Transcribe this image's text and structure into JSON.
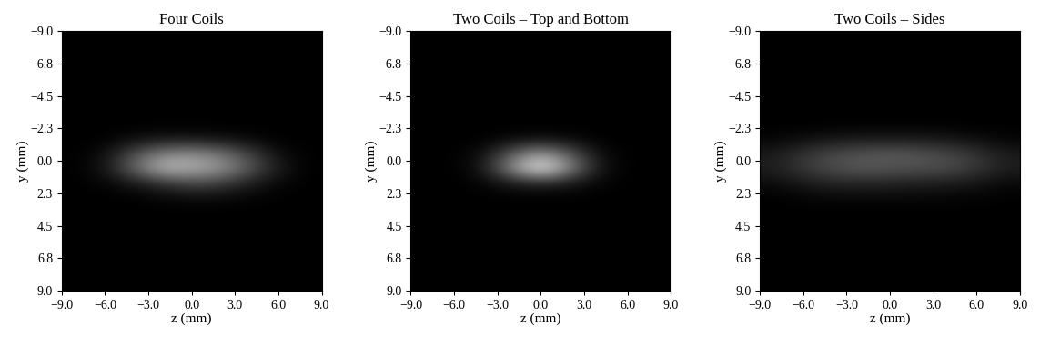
{
  "chart_data": [
    {
      "type": "heatmap",
      "title": "Four Coils",
      "x_label": "z (mm)",
      "y_label": "y (mm)",
      "xlim": [
        -9.0,
        9.0
      ],
      "ylim": [
        9.0,
        -9.0
      ],
      "xticks": [
        {
          "value": -9.0,
          "label": "−9.0"
        },
        {
          "value": -6.0,
          "label": "−6.0"
        },
        {
          "value": -3.0,
          "label": "−3.0"
        },
        {
          "value": 0.0,
          "label": "0.0"
        },
        {
          "value": 3.0,
          "label": "3.0"
        },
        {
          "value": 6.0,
          "label": "6.0"
        },
        {
          "value": 9.0,
          "label": "9.0"
        }
      ],
      "yticks": [
        {
          "value": -9.0,
          "label": "−9.0"
        },
        {
          "value": -6.75,
          "label": "−6.8"
        },
        {
          "value": -4.5,
          "label": "−4.5"
        },
        {
          "value": -2.25,
          "label": "−2.3"
        },
        {
          "value": 0.0,
          "label": "0.0"
        },
        {
          "value": 2.25,
          "label": "2.3"
        },
        {
          "value": 4.5,
          "label": "4.5"
        },
        {
          "value": 6.75,
          "label": "6.8"
        },
        {
          "value": 9.0,
          "label": "9.0"
        }
      ],
      "z_edges": [
        -9,
        -7,
        -5,
        -3,
        -1,
        1,
        3,
        5,
        7,
        9
      ],
      "y_edges": [
        -9,
        -8,
        -7,
        -6,
        -5,
        -4,
        -3,
        -2,
        -1,
        0,
        1,
        2,
        3,
        4,
        5,
        6,
        7,
        8,
        9
      ],
      "color": "gray",
      "color_range": [
        0,
        1
      ],
      "cells": [
        [
          0,
          0,
          0,
          0,
          0,
          0,
          0,
          0,
          0
        ],
        [
          0,
          0,
          0,
          0,
          0,
          0,
          0,
          0,
          0
        ],
        [
          0,
          0,
          0,
          0,
          0,
          0,
          0,
          0,
          0
        ],
        [
          0,
          0,
          0,
          0,
          0,
          0,
          0,
          0,
          0
        ],
        [
          0,
          0,
          0,
          0,
          0,
          0,
          0,
          0,
          0
        ],
        [
          0,
          0,
          0,
          0,
          0,
          0,
          0,
          0,
          0
        ],
        [
          0,
          0,
          0,
          0,
          0,
          0,
          0,
          0,
          0
        ],
        [
          0,
          0,
          0.05,
          0.08,
          0.08,
          0.06,
          0.03,
          0,
          0
        ],
        [
          0,
          0.05,
          0.3,
          0.5,
          0.55,
          0.45,
          0.25,
          0.05,
          0
        ],
        [
          0,
          0.08,
          0.4,
          0.75,
          0.7,
          0.6,
          0.35,
          0.1,
          0
        ],
        [
          0,
          0.02,
          0.1,
          0.2,
          0.3,
          0.25,
          0.12,
          0.03,
          0
        ],
        [
          0,
          0,
          0,
          0.03,
          0.05,
          0.04,
          0.02,
          0,
          0
        ],
        [
          0,
          0,
          0,
          0,
          0,
          0,
          0,
          0,
          0
        ],
        [
          0,
          0,
          0,
          0,
          0,
          0,
          0,
          0,
          0
        ],
        [
          0,
          0,
          0,
          0,
          0,
          0,
          0,
          0,
          0
        ],
        [
          0,
          0,
          0,
          0,
          0,
          0,
          0,
          0,
          0
        ],
        [
          0,
          0,
          0,
          0,
          0,
          0,
          0,
          0,
          0
        ],
        [
          0,
          0,
          0,
          0,
          0,
          0,
          0,
          0,
          0
        ]
      ]
    },
    {
      "type": "heatmap",
      "title": "Two Coils – Top and Bottom",
      "x_label": "z (mm)",
      "y_label": "y (mm)",
      "xlim": [
        -9.0,
        9.0
      ],
      "ylim": [
        9.0,
        -9.0
      ],
      "xticks": [
        {
          "value": -9.0,
          "label": "−9.0"
        },
        {
          "value": -6.0,
          "label": "−6.0"
        },
        {
          "value": -3.0,
          "label": "−3.0"
        },
        {
          "value": 0.0,
          "label": "0.0"
        },
        {
          "value": 3.0,
          "label": "3.0"
        },
        {
          "value": 6.0,
          "label": "6.0"
        },
        {
          "value": 9.0,
          "label": "9.0"
        }
      ],
      "yticks": [
        {
          "value": -9.0,
          "label": "−9.0"
        },
        {
          "value": -6.75,
          "label": "−6.8"
        },
        {
          "value": -4.5,
          "label": "−4.5"
        },
        {
          "value": -2.25,
          "label": "−2.3"
        },
        {
          "value": 0.0,
          "label": "0.0"
        },
        {
          "value": 2.25,
          "label": "2.3"
        },
        {
          "value": 4.5,
          "label": "4.5"
        },
        {
          "value": 6.75,
          "label": "6.8"
        },
        {
          "value": 9.0,
          "label": "9.0"
        }
      ],
      "z_edges": [
        -9,
        -7,
        -5,
        -3,
        -1,
        1,
        3,
        5,
        7,
        9
      ],
      "y_edges": [
        -9,
        -8,
        -7,
        -6,
        -5,
        -4,
        -3,
        -2,
        -1,
        0,
        1,
        2,
        3,
        4,
        5,
        6,
        7,
        8,
        9
      ],
      "color": "gray",
      "color_range": [
        0,
        1
      ],
      "cells": [
        [
          0,
          0,
          0,
          0,
          0,
          0,
          0,
          0,
          0
        ],
        [
          0,
          0,
          0,
          0,
          0,
          0,
          0,
          0,
          0
        ],
        [
          0,
          0,
          0,
          0,
          0,
          0,
          0,
          0,
          0
        ],
        [
          0,
          0,
          0,
          0,
          0,
          0,
          0,
          0,
          0
        ],
        [
          0,
          0,
          0,
          0,
          0,
          0,
          0,
          0,
          0
        ],
        [
          0,
          0,
          0,
          0,
          0,
          0,
          0,
          0,
          0
        ],
        [
          0,
          0,
          0,
          0,
          0,
          0,
          0,
          0,
          0
        ],
        [
          0,
          0,
          0,
          0.03,
          0.05,
          0.03,
          0,
          0,
          0
        ],
        [
          0,
          0,
          0.05,
          0.35,
          0.6,
          0.35,
          0.05,
          0,
          0
        ],
        [
          0,
          0,
          0.08,
          0.55,
          1.0,
          0.55,
          0.08,
          0,
          0
        ],
        [
          0,
          0,
          0.02,
          0.1,
          0.15,
          0.1,
          0.02,
          0,
          0
        ],
        [
          0,
          0,
          0,
          0,
          0,
          0,
          0,
          0,
          0
        ],
        [
          0,
          0,
          0,
          0,
          0,
          0,
          0,
          0,
          0
        ],
        [
          0,
          0,
          0,
          0,
          0,
          0,
          0,
          0,
          0
        ],
        [
          0,
          0,
          0,
          0,
          0,
          0,
          0,
          0,
          0
        ],
        [
          0,
          0,
          0,
          0,
          0,
          0,
          0,
          0,
          0
        ],
        [
          0,
          0,
          0,
          0,
          0,
          0,
          0,
          0,
          0
        ],
        [
          0,
          0,
          0,
          0,
          0,
          0,
          0,
          0,
          0
        ]
      ]
    },
    {
      "type": "heatmap",
      "title": "Two Coils – Sides",
      "x_label": "z (mm)",
      "y_label": "y (mm)",
      "xlim": [
        -9.0,
        9.0
      ],
      "ylim": [
        9.0,
        -9.0
      ],
      "xticks": [
        {
          "value": -9.0,
          "label": "−9.0"
        },
        {
          "value": -6.0,
          "label": "−6.0"
        },
        {
          "value": -3.0,
          "label": "−3.0"
        },
        {
          "value": 0.0,
          "label": "0.0"
        },
        {
          "value": 3.0,
          "label": "3.0"
        },
        {
          "value": 6.0,
          "label": "6.0"
        },
        {
          "value": 9.0,
          "label": "9.0"
        }
      ],
      "yticks": [
        {
          "value": -9.0,
          "label": "−9.0"
        },
        {
          "value": -6.75,
          "label": "−6.8"
        },
        {
          "value": -4.5,
          "label": "−4.5"
        },
        {
          "value": -2.25,
          "label": "−2.3"
        },
        {
          "value": 0.0,
          "label": "0.0"
        },
        {
          "value": 2.25,
          "label": "2.3"
        },
        {
          "value": 4.5,
          "label": "4.5"
        },
        {
          "value": 6.75,
          "label": "6.8"
        },
        {
          "value": 9.0,
          "label": "9.0"
        }
      ],
      "z_edges": [
        -9,
        -7,
        -5,
        -3,
        -1,
        1,
        3,
        5,
        7,
        9
      ],
      "y_edges": [
        -9,
        -8,
        -7,
        -6,
        -5,
        -4,
        -3,
        -2,
        -1,
        0,
        1,
        2,
        3,
        4,
        5,
        6,
        7,
        8,
        9
      ],
      "color": "gray",
      "color_range": [
        0,
        1
      ],
      "cells": [
        [
          0,
          0,
          0,
          0,
          0,
          0,
          0,
          0,
          0
        ],
        [
          0,
          0,
          0,
          0,
          0,
          0,
          0,
          0,
          0
        ],
        [
          0,
          0,
          0,
          0,
          0,
          0,
          0,
          0,
          0
        ],
        [
          0,
          0,
          0,
          0,
          0,
          0,
          0,
          0,
          0
        ],
        [
          0,
          0,
          0,
          0,
          0,
          0,
          0,
          0,
          0
        ],
        [
          0,
          0,
          0,
          0,
          0,
          0,
          0,
          0,
          0
        ],
        [
          0,
          0,
          0,
          0,
          0,
          0,
          0,
          0,
          0
        ],
        [
          0.02,
          0.05,
          0.08,
          0.1,
          0.1,
          0.1,
          0.08,
          0.05,
          0.02
        ],
        [
          0.1,
          0.2,
          0.28,
          0.32,
          0.35,
          0.32,
          0.28,
          0.2,
          0.1
        ],
        [
          0.12,
          0.22,
          0.3,
          0.35,
          0.33,
          0.32,
          0.3,
          0.22,
          0.12
        ],
        [
          0.05,
          0.1,
          0.15,
          0.15,
          0.15,
          0.12,
          0.12,
          0.08,
          0.04
        ],
        [
          0,
          0.02,
          0.03,
          0.03,
          0.03,
          0.03,
          0.02,
          0.02,
          0
        ],
        [
          0,
          0,
          0,
          0,
          0,
          0,
          0,
          0,
          0
        ],
        [
          0,
          0,
          0,
          0,
          0,
          0,
          0,
          0,
          0
        ],
        [
          0,
          0,
          0,
          0,
          0,
          0,
          0,
          0,
          0
        ],
        [
          0,
          0,
          0,
          0,
          0,
          0,
          0,
          0,
          0
        ],
        [
          0,
          0,
          0,
          0,
          0,
          0,
          0,
          0,
          0
        ],
        [
          0,
          0,
          0,
          0,
          0,
          0,
          0,
          0,
          0
        ]
      ]
    }
  ]
}
